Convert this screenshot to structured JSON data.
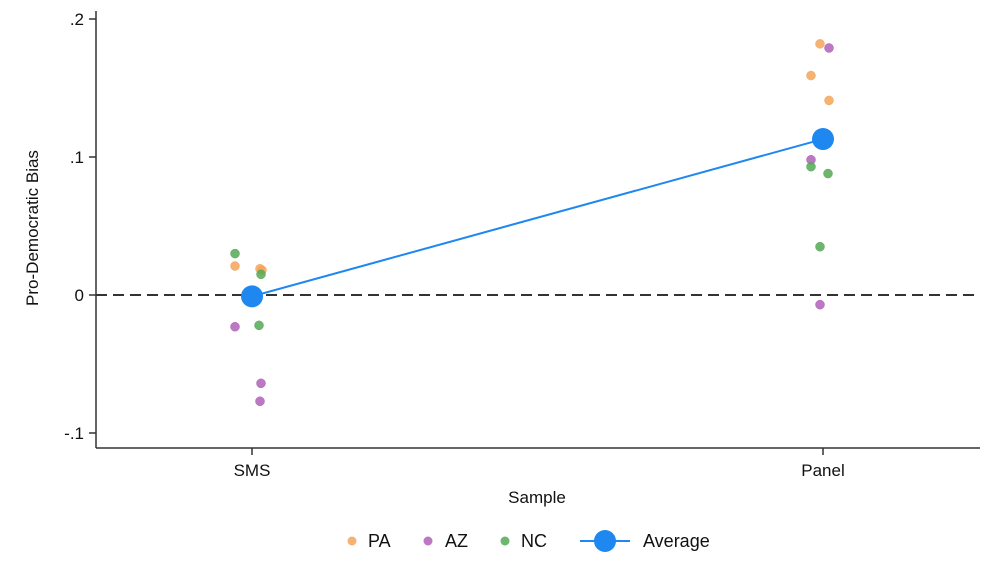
{
  "chart_data": {
    "type": "scatter",
    "xlabel": "Sample",
    "ylabel": "Pro-Democratic Bias",
    "categories": [
      "SMS",
      "Panel"
    ],
    "ylim": [
      -0.11,
      0.205
    ],
    "yticks": [
      -0.1,
      0,
      0.1,
      0.2
    ],
    "ytick_labels": [
      "-.1",
      "0",
      ".1",
      ".2"
    ],
    "reference_line": {
      "y": 0,
      "style": "dashed",
      "color": "#333333"
    },
    "grid": false,
    "legend_placement": "bottom",
    "series": [
      {
        "name": "PA",
        "color": "#f5a55a",
        "points": [
          {
            "x": "SMS",
            "y": 0.021
          },
          {
            "x": "SMS",
            "y": 0.019
          },
          {
            "x": "SMS",
            "y": 0.018
          },
          {
            "x": "Panel",
            "y": 0.182
          },
          {
            "x": "Panel",
            "y": 0.159
          },
          {
            "x": "Panel",
            "y": 0.141
          }
        ]
      },
      {
        "name": "AZ",
        "color": "#b060b8",
        "points": [
          {
            "x": "SMS",
            "y": -0.023
          },
          {
            "x": "SMS",
            "y": -0.064
          },
          {
            "x": "SMS",
            "y": -0.077
          },
          {
            "x": "Panel",
            "y": 0.179
          },
          {
            "x": "Panel",
            "y": 0.098
          },
          {
            "x": "Panel",
            "y": -0.007
          }
        ]
      },
      {
        "name": "NC",
        "color": "#55a855",
        "points": [
          {
            "x": "SMS",
            "y": 0.03
          },
          {
            "x": "SMS",
            "y": 0.015
          },
          {
            "x": "SMS",
            "y": -0.022
          },
          {
            "x": "Panel",
            "y": 0.093
          },
          {
            "x": "Panel",
            "y": 0.088
          },
          {
            "x": "Panel",
            "y": 0.035
          }
        ]
      },
      {
        "name": "Average",
        "color": "#1e88f0",
        "line": true,
        "points": [
          {
            "x": "SMS",
            "y": -0.001
          },
          {
            "x": "Panel",
            "y": 0.113
          }
        ]
      }
    ]
  }
}
